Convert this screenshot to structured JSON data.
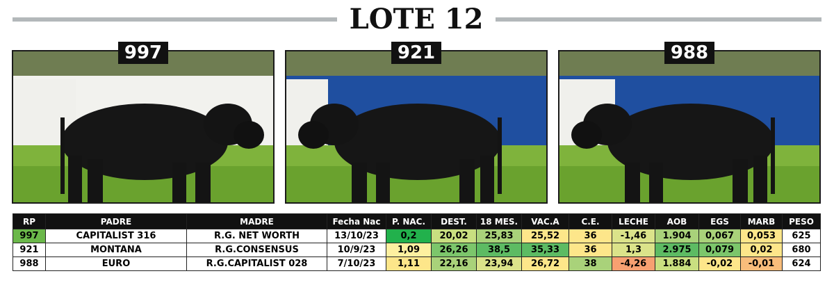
{
  "header": {
    "title": "LOTE 12"
  },
  "photos": [
    {
      "label": "997"
    },
    {
      "label": "921"
    },
    {
      "label": "988"
    }
  ],
  "table": {
    "columns": [
      "RP",
      "PADRE",
      "MADRE",
      "Fecha Nac",
      "P. NAC.",
      "DEST.",
      "18 MES.",
      "VAC.A",
      "C.E.",
      "LECHE",
      "AOB",
      "EGS",
      "MARB",
      "PESO"
    ],
    "rows": [
      [
        "997",
        "CAPITALIST 316",
        "R.G. NET WORTH",
        "13/10/23",
        "0,2",
        "20,02",
        "25,83",
        "25,52",
        "36",
        "-1,46",
        "1.904",
        "0,067",
        "0,053",
        "625"
      ],
      [
        "921",
        "MONTANA",
        "R.G.CONSENSUS",
        "10/9/23",
        "1,09",
        "26,26",
        "38,5",
        "35,33",
        "36",
        "1,3",
        "2.975",
        "0,079",
        "0,02",
        "680"
      ],
      [
        "988",
        "EURO",
        "R.G.CAPITALIST 028",
        "7/10/23",
        "1,11",
        "22,16",
        "23,94",
        "26,72",
        "38",
        "-4,26",
        "1.884",
        "-0,02",
        "-0,01",
        "624"
      ]
    ]
  }
}
